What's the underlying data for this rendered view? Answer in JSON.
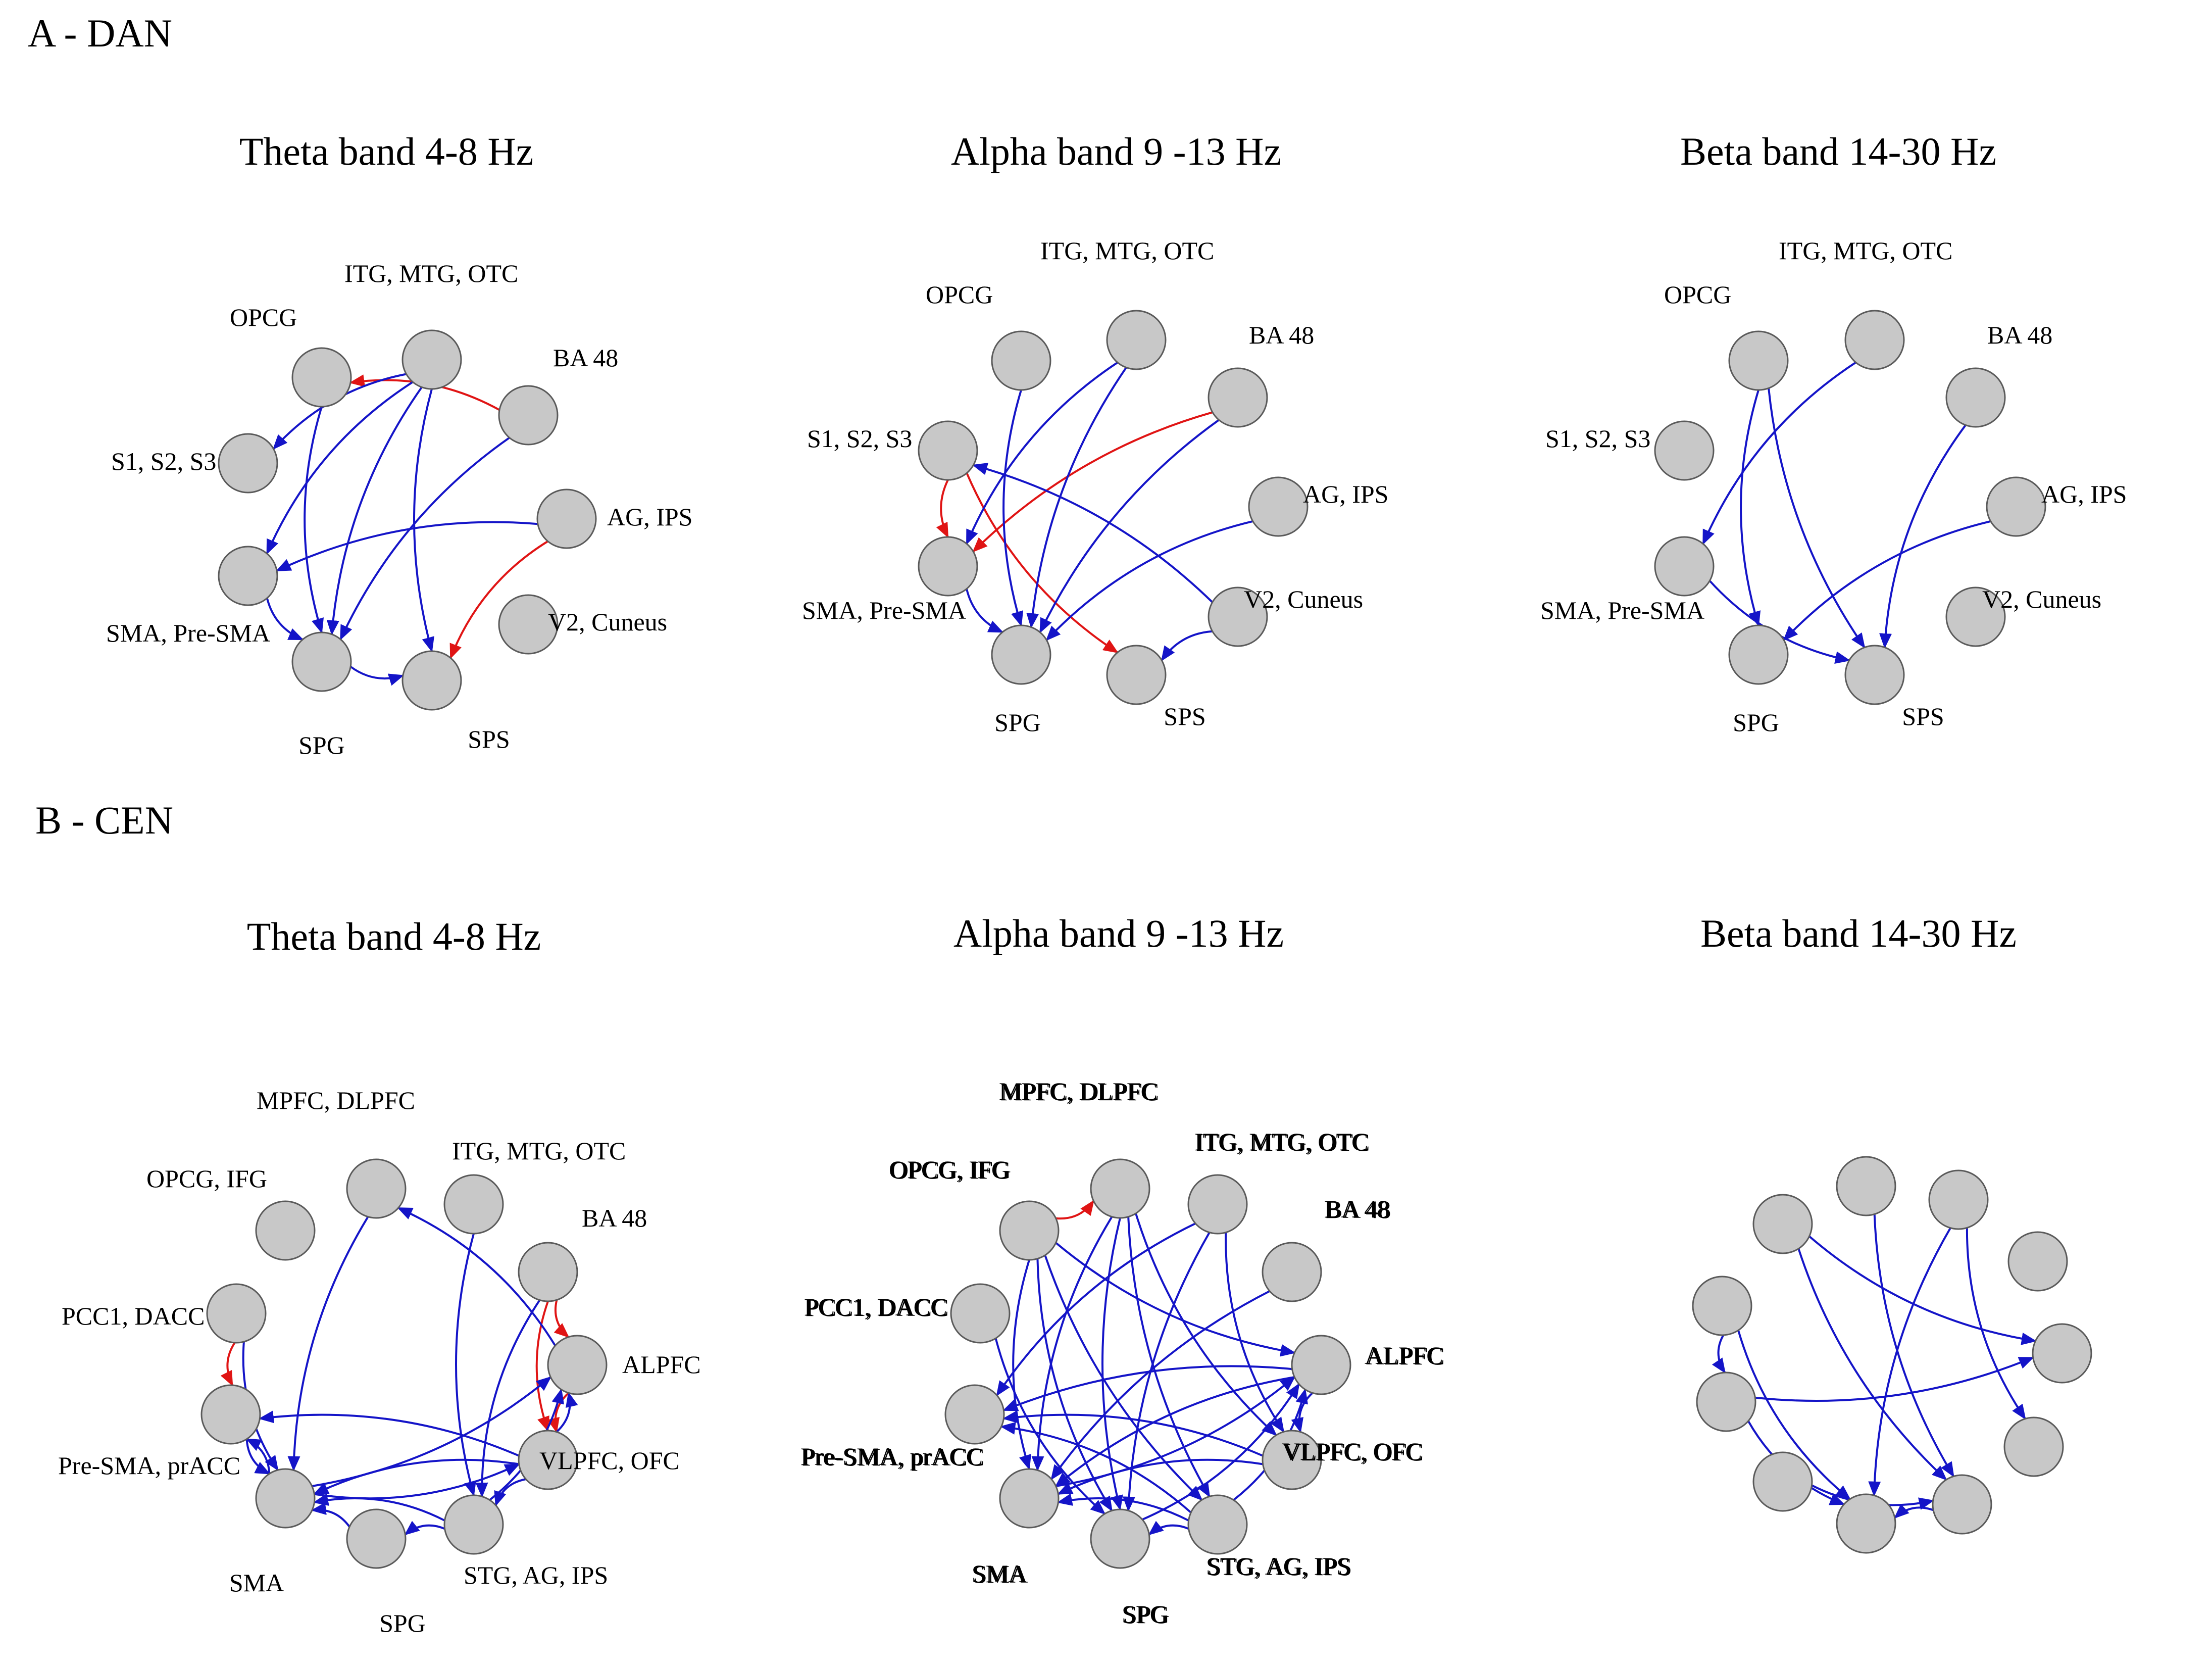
{
  "figure": {
    "colors": {
      "inhibitory_edge": "#e01414",
      "excitatory_edge": "#1414c8",
      "node_fill": "#c8c8c8",
      "node_stroke": "#5a5a5a"
    },
    "sections": [
      {
        "label": "A - DAN",
        "nodes": [
          {
            "id": "OPCG",
            "label": "OPCG"
          },
          {
            "id": "ITG",
            "label": "ITG, MTG, OTC"
          },
          {
            "id": "BA48",
            "label": "BA 48"
          },
          {
            "id": "S123",
            "label": "S1, S2, S3"
          },
          {
            "id": "AGIPS",
            "label": "AG, IPS"
          },
          {
            "id": "SMA",
            "label": "SMA, Pre-SMA"
          },
          {
            "id": "V2",
            "label": "V2, Cuneus"
          },
          {
            "id": "SPG",
            "label": "SPG"
          },
          {
            "id": "SPS",
            "label": "SPS"
          }
        ],
        "panels": [
          {
            "title": "Theta band 4-8 Hz",
            "edges": [
              {
                "from": "BA48",
                "to": "OPCG",
                "color": "red"
              },
              {
                "from": "ITG",
                "to": "S123",
                "color": "blue"
              },
              {
                "from": "ITG",
                "to": "SMA",
                "color": "blue"
              },
              {
                "from": "ITG",
                "to": "SPG",
                "color": "blue"
              },
              {
                "from": "ITG",
                "to": "SPS",
                "color": "blue"
              },
              {
                "from": "OPCG",
                "to": "SPG",
                "color": "blue"
              },
              {
                "from": "BA48",
                "to": "SPG",
                "color": "blue"
              },
              {
                "from": "AGIPS",
                "to": "SMA",
                "color": "blue"
              },
              {
                "from": "AGIPS",
                "to": "SPS",
                "color": "red"
              },
              {
                "from": "SMA",
                "to": "SPG",
                "color": "blue"
              },
              {
                "from": "SPG",
                "to": "SPS",
                "color": "blue"
              }
            ]
          },
          {
            "title": "Alpha band 9 -13 Hz",
            "edges": [
              {
                "from": "BA48",
                "to": "SMA",
                "color": "red"
              },
              {
                "from": "S123",
                "to": "SMA",
                "color": "red"
              },
              {
                "from": "S123",
                "to": "SPS",
                "color": "red"
              },
              {
                "from": "OPCG",
                "to": "SPG",
                "color": "blue"
              },
              {
                "from": "ITG",
                "to": "SMA",
                "color": "blue"
              },
              {
                "from": "ITG",
                "to": "SPG",
                "color": "blue"
              },
              {
                "from": "BA48",
                "to": "SPG",
                "color": "blue"
              },
              {
                "from": "AGIPS",
                "to": "SPG",
                "color": "blue"
              },
              {
                "from": "V2",
                "to": "S123",
                "color": "blue"
              },
              {
                "from": "V2",
                "to": "SPS",
                "color": "blue"
              },
              {
                "from": "SMA",
                "to": "SPG",
                "color": "blue"
              }
            ]
          },
          {
            "title": "Beta band 14-30 Hz",
            "edges": [
              {
                "from": "ITG",
                "to": "SMA",
                "color": "blue"
              },
              {
                "from": "OPCG",
                "to": "SPG",
                "color": "blue"
              },
              {
                "from": "OPCG",
                "to": "SPS",
                "color": "blue"
              },
              {
                "from": "BA48",
                "to": "SPS",
                "color": "blue"
              },
              {
                "from": "AGIPS",
                "to": "SPG",
                "color": "blue"
              },
              {
                "from": "SMA",
                "to": "SPS",
                "color": "blue"
              }
            ]
          }
        ]
      },
      {
        "label": "B - CEN",
        "nodes": [
          {
            "id": "MPFC",
            "label": "MPFC, DLPFC"
          },
          {
            "id": "OPCG",
            "label": "OPCG, IFG"
          },
          {
            "id": "ITG",
            "label": "ITG, MTG, OTC"
          },
          {
            "id": "BA48",
            "label": "BA 48"
          },
          {
            "id": "PCC",
            "label": "PCC1, DACC"
          },
          {
            "id": "ALPFC",
            "label": "ALPFC"
          },
          {
            "id": "PRE",
            "label": "Pre-SMA, prACC"
          },
          {
            "id": "VLPFC",
            "label": "VLPFC, OFC"
          },
          {
            "id": "SMA",
            "label": "SMA"
          },
          {
            "id": "STG",
            "label": "STG, AG, IPS"
          },
          {
            "id": "SPG",
            "label": "SPG"
          }
        ],
        "panels": [
          {
            "title": "Theta band 4-8 Hz",
            "edges": [
              {
                "from": "PCC",
                "to": "PRE",
                "color": "red"
              },
              {
                "from": "BA48",
                "to": "ALPFC",
                "color": "red"
              },
              {
                "from": "BA48",
                "to": "VLPFC",
                "color": "red"
              },
              {
                "from": "ALPFC",
                "to": "VLPFC",
                "color": "red"
              },
              {
                "from": "MPFC",
                "to": "SMA",
                "color": "blue"
              },
              {
                "from": "ALPFC",
                "to": "MPFC",
                "color": "blue"
              },
              {
                "from": "ITG",
                "to": "STG",
                "color": "blue"
              },
              {
                "from": "BA48",
                "to": "STG",
                "color": "blue"
              },
              {
                "from": "PCC",
                "to": "SMA",
                "color": "blue"
              },
              {
                "from": "PRE",
                "to": "SMA",
                "color": "blue"
              },
              {
                "from": "SMA",
                "to": "PRE",
                "color": "blue"
              },
              {
                "from": "VLPFC",
                "to": "PRE",
                "color": "blue"
              },
              {
                "from": "SMA",
                "to": "ALPFC",
                "color": "blue"
              },
              {
                "from": "SMA",
                "to": "VLPFC",
                "color": "blue"
              },
              {
                "from": "VLPFC",
                "to": "SMA",
                "color": "blue"
              },
              {
                "from": "STG",
                "to": "SMA",
                "color": "blue"
              },
              {
                "from": "SPG",
                "to": "SMA",
                "color": "blue"
              },
              {
                "from": "STG",
                "to": "SPG",
                "color": "blue"
              },
              {
                "from": "VLPFC",
                "to": "STG",
                "color": "blue"
              },
              {
                "from": "STG",
                "to": "ALPFC",
                "color": "blue"
              },
              {
                "from": "VLPFC",
                "to": "ALPFC",
                "color": "blue"
              }
            ]
          },
          {
            "title": "Alpha band 9 -13 Hz",
            "edges": [
              {
                "from": "OPCG",
                "to": "MPFC",
                "color": "red"
              },
              {
                "from": "OPCG",
                "to": "ALPFC",
                "color": "blue"
              },
              {
                "from": "OPCG",
                "to": "SMA",
                "color": "blue"
              },
              {
                "from": "OPCG",
                "to": "SPG",
                "color": "blue"
              },
              {
                "from": "OPCG",
                "to": "STG",
                "color": "blue"
              },
              {
                "from": "MPFC",
                "to": "SMA",
                "color": "blue"
              },
              {
                "from": "MPFC",
                "to": "SPG",
                "color": "blue"
              },
              {
                "from": "MPFC",
                "to": "VLPFC",
                "color": "blue"
              },
              {
                "from": "MPFC",
                "to": "STG",
                "color": "blue"
              },
              {
                "from": "ITG",
                "to": "PRE",
                "color": "blue"
              },
              {
                "from": "ITG",
                "to": "VLPFC",
                "color": "blue"
              },
              {
                "from": "ITG",
                "to": "SPG",
                "color": "blue"
              },
              {
                "from": "BA48",
                "to": "SMA",
                "color": "blue"
              },
              {
                "from": "PCC",
                "to": "SPG",
                "color": "blue"
              },
              {
                "from": "ALPFC",
                "to": "PRE",
                "color": "blue"
              },
              {
                "from": "ALPFC",
                "to": "VLPFC",
                "color": "blue"
              },
              {
                "from": "ALPFC",
                "to": "SMA",
                "color": "blue"
              },
              {
                "from": "VLPFC",
                "to": "PRE",
                "color": "blue"
              },
              {
                "from": "VLPFC",
                "to": "SMA",
                "color": "blue"
              },
              {
                "from": "SMA",
                "to": "ALPFC",
                "color": "blue"
              },
              {
                "from": "STG",
                "to": "SMA",
                "color": "blue"
              },
              {
                "from": "STG",
                "to": "SPG",
                "color": "blue"
              },
              {
                "from": "STG",
                "to": "PRE",
                "color": "blue"
              },
              {
                "from": "STG",
                "to": "ALPFC",
                "color": "blue"
              },
              {
                "from": "SPG",
                "to": "ALPFC",
                "color": "blue"
              }
            ]
          },
          {
            "title": "Beta band 14-30 Hz",
            "edges": [
              {
                "from": "PCC",
                "to": "PRE",
                "color": "blue"
              },
              {
                "from": "PCC",
                "to": "SPG",
                "color": "blue"
              },
              {
                "from": "OPCG",
                "to": "ALPFC",
                "color": "blue"
              },
              {
                "from": "OPCG",
                "to": "STG",
                "color": "blue"
              },
              {
                "from": "MPFC",
                "to": "STG",
                "color": "blue"
              },
              {
                "from": "ITG",
                "to": "SPG",
                "color": "blue"
              },
              {
                "from": "ITG",
                "to": "VLPFC",
                "color": "blue"
              },
              {
                "from": "PRE",
                "to": "ALPFC",
                "color": "blue"
              },
              {
                "from": "PRE",
                "to": "SPG",
                "color": "blue"
              },
              {
                "from": "SMA",
                "to": "STG",
                "color": "blue"
              },
              {
                "from": "STG",
                "to": "SPG",
                "color": "blue"
              }
            ]
          }
        ]
      }
    ]
  }
}
